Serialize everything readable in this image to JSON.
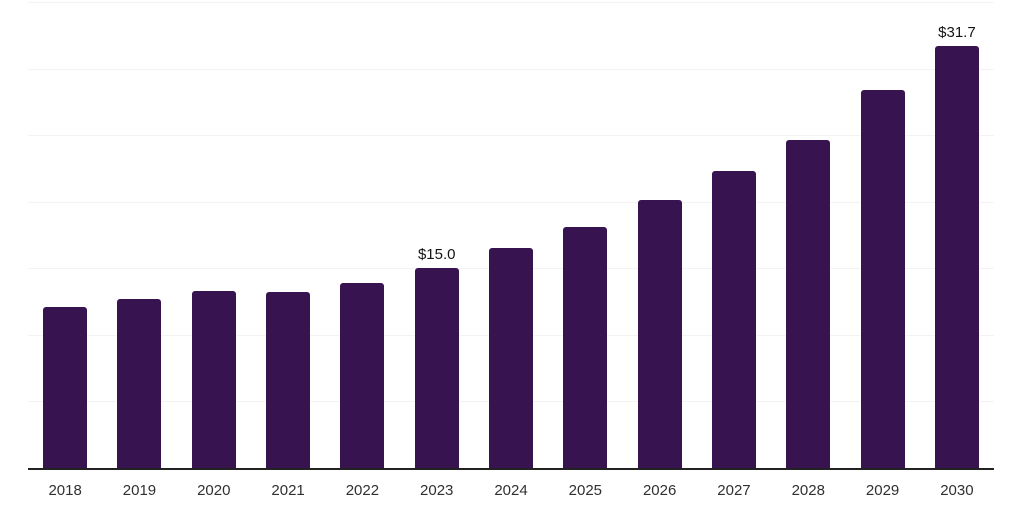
{
  "chart_data": {
    "type": "bar",
    "title": "",
    "xlabel": "",
    "ylabel": "",
    "categories": [
      "2018",
      "2019",
      "2020",
      "2021",
      "2022",
      "2023",
      "2024",
      "2025",
      "2026",
      "2027",
      "2028",
      "2029",
      "2030"
    ],
    "values": [
      12.1,
      12.7,
      13.3,
      13.2,
      13.9,
      15.0,
      16.5,
      18.1,
      20.1,
      22.3,
      24.6,
      28.4,
      31.7
    ],
    "annotations": [
      {
        "category": "2023",
        "label": "$15.0"
      },
      {
        "category": "2030",
        "label": "$31.7"
      }
    ],
    "ylim": [
      0,
      35
    ],
    "grid": true,
    "grid_step": 5,
    "y_tick_labels_visible": false,
    "legend": false,
    "colors": {
      "bar": "#371450",
      "gridline": "#f3f3f3",
      "axis": "#222222",
      "tick_label": "#303030",
      "value_label": "#141414",
      "background": "#ffffff"
    }
  }
}
